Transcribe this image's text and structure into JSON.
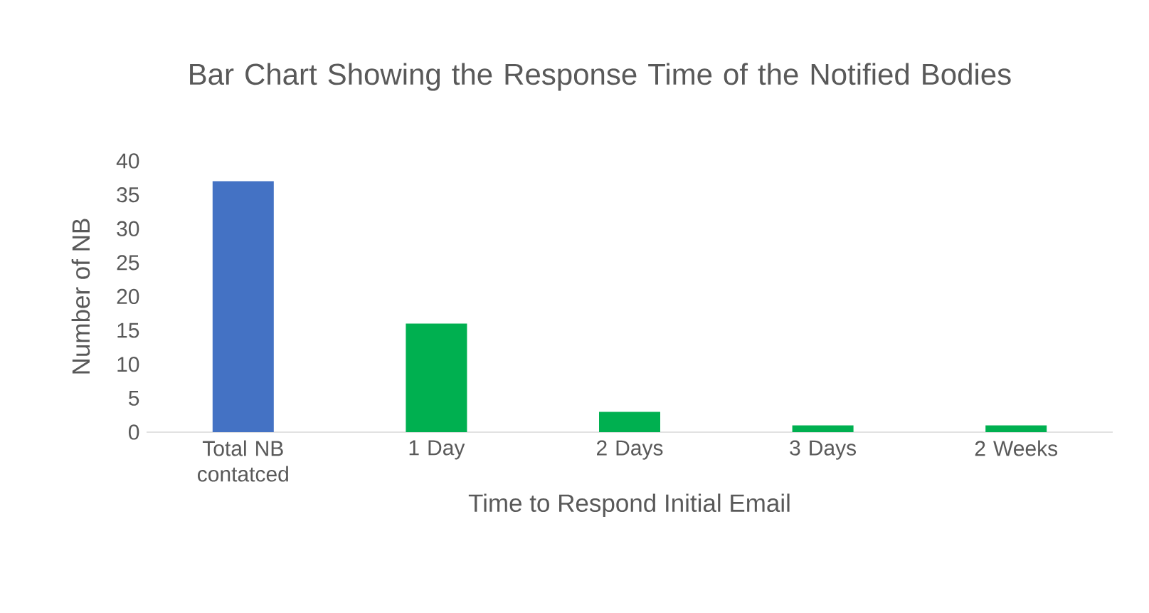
{
  "chart_data": {
    "type": "bar",
    "title": "Bar Chart Showing the Response Time of the Notified Bodies",
    "xlabel": "Time to Respond Initial Email",
    "ylabel": "Number of NB",
    "categories": [
      "Total NB contatced",
      "1 Day",
      "2 Days",
      "3 Days",
      "2 Weeks"
    ],
    "values": [
      37,
      16,
      3,
      1,
      1
    ],
    "colors": [
      "#4472c4",
      "#00b050",
      "#00b050",
      "#00b050",
      "#00b050"
    ],
    "ylim": [
      0,
      40
    ],
    "yticks": [
      0,
      5,
      10,
      15,
      20,
      25,
      30,
      35,
      40
    ]
  }
}
